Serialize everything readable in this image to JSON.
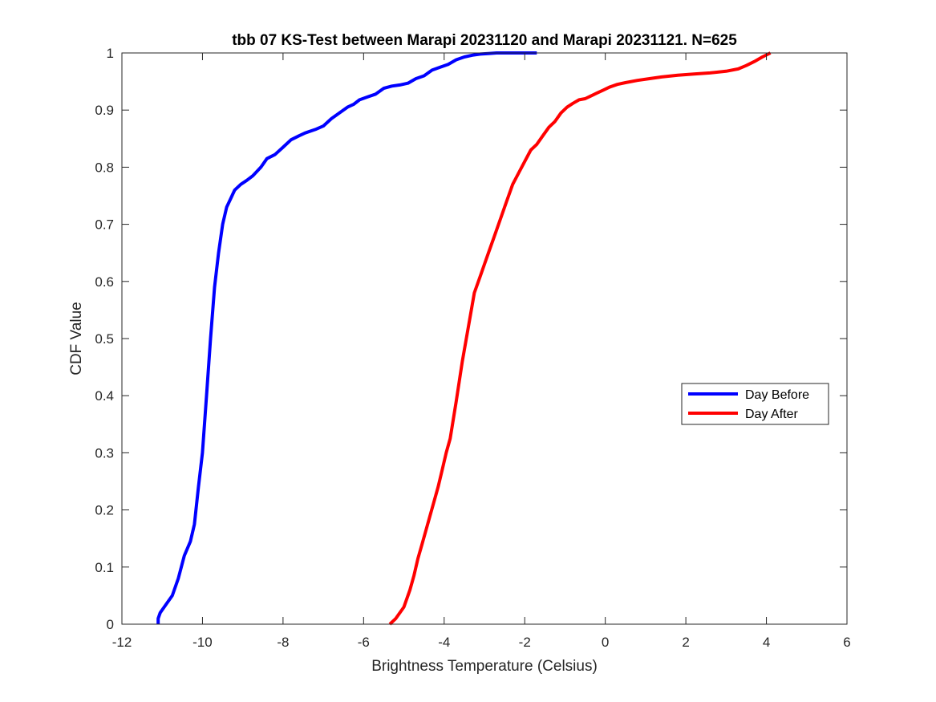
{
  "chart_data": {
    "type": "line",
    "title": "tbb 07 KS-Test between Marapi 20231120 and Marapi 20231121. N=625",
    "xlabel": "Brightness Temperature (Celsius)",
    "ylabel": "CDF Value",
    "xlim": [
      -12,
      6
    ],
    "ylim": [
      0,
      1
    ],
    "xticks": [
      "-12",
      "-10",
      "-8",
      "-6",
      "-4",
      "-2",
      "0",
      "2",
      "4",
      "6"
    ],
    "yticks": [
      "0",
      "0.1",
      "0.2",
      "0.3",
      "0.4",
      "0.5",
      "0.6",
      "0.7",
      "0.8",
      "0.9",
      "1"
    ],
    "grid": false,
    "legend_position": "right",
    "series": [
      {
        "name": "Day Before",
        "color": "#0000ff",
        "x": [
          -11.1,
          -11.1,
          -11.05,
          -10.9,
          -10.75,
          -10.6,
          -10.45,
          -10.3,
          -10.2,
          -10.1,
          -10.0,
          -9.9,
          -9.8,
          -9.7,
          -9.6,
          -9.5,
          -9.4,
          -9.3,
          -9.2,
          -9.05,
          -8.9,
          -8.75,
          -8.55,
          -8.4,
          -8.2,
          -8.0,
          -7.8,
          -7.6,
          -7.45,
          -7.2,
          -7.0,
          -6.8,
          -6.6,
          -6.4,
          -6.25,
          -6.1,
          -5.9,
          -5.7,
          -5.5,
          -5.3,
          -5.1,
          -4.9,
          -4.7,
          -4.5,
          -4.3,
          -4.1,
          -3.9,
          -3.7,
          -3.5,
          -3.3,
          -3.1,
          -2.9,
          -2.7,
          -2.5,
          -2.3,
          -2.0,
          -1.7
        ],
        "y": [
          0.0,
          0.01,
          0.02,
          0.035,
          0.05,
          0.08,
          0.12,
          0.145,
          0.175,
          0.24,
          0.3,
          0.4,
          0.5,
          0.59,
          0.65,
          0.7,
          0.73,
          0.745,
          0.76,
          0.77,
          0.777,
          0.785,
          0.8,
          0.815,
          0.822,
          0.835,
          0.848,
          0.855,
          0.86,
          0.866,
          0.872,
          0.885,
          0.895,
          0.905,
          0.91,
          0.918,
          0.923,
          0.928,
          0.938,
          0.942,
          0.944,
          0.947,
          0.955,
          0.96,
          0.97,
          0.975,
          0.98,
          0.988,
          0.993,
          0.996,
          0.998,
          0.999,
          1.0,
          1.0,
          1.0,
          1.0,
          1.0
        ]
      },
      {
        "name": "Day After",
        "color": "#ff0000",
        "x": [
          -5.35,
          -5.2,
          -5.0,
          -4.85,
          -4.75,
          -4.65,
          -4.55,
          -4.45,
          -4.35,
          -4.25,
          -4.15,
          -4.05,
          -3.95,
          -3.85,
          -3.7,
          -3.55,
          -3.4,
          -3.25,
          -3.1,
          -3.0,
          -2.9,
          -2.75,
          -2.6,
          -2.45,
          -2.3,
          -2.15,
          -2.0,
          -1.85,
          -1.7,
          -1.55,
          -1.4,
          -1.25,
          -1.1,
          -0.95,
          -0.8,
          -0.65,
          -0.5,
          -0.35,
          -0.2,
          -0.05,
          0.1,
          0.3,
          0.5,
          0.8,
          1.1,
          1.4,
          1.8,
          2.2,
          2.6,
          3.0,
          3.3,
          3.5,
          3.7,
          3.9,
          4.1
        ],
        "y": [
          0.0,
          0.01,
          0.03,
          0.06,
          0.085,
          0.115,
          0.14,
          0.165,
          0.19,
          0.215,
          0.24,
          0.27,
          0.3,
          0.325,
          0.39,
          0.46,
          0.52,
          0.58,
          0.61,
          0.63,
          0.65,
          0.68,
          0.71,
          0.74,
          0.77,
          0.79,
          0.81,
          0.83,
          0.84,
          0.855,
          0.87,
          0.88,
          0.895,
          0.905,
          0.912,
          0.918,
          0.92,
          0.925,
          0.93,
          0.935,
          0.94,
          0.945,
          0.948,
          0.952,
          0.955,
          0.958,
          0.961,
          0.963,
          0.965,
          0.968,
          0.972,
          0.978,
          0.985,
          0.993,
          1.0
        ]
      }
    ]
  }
}
